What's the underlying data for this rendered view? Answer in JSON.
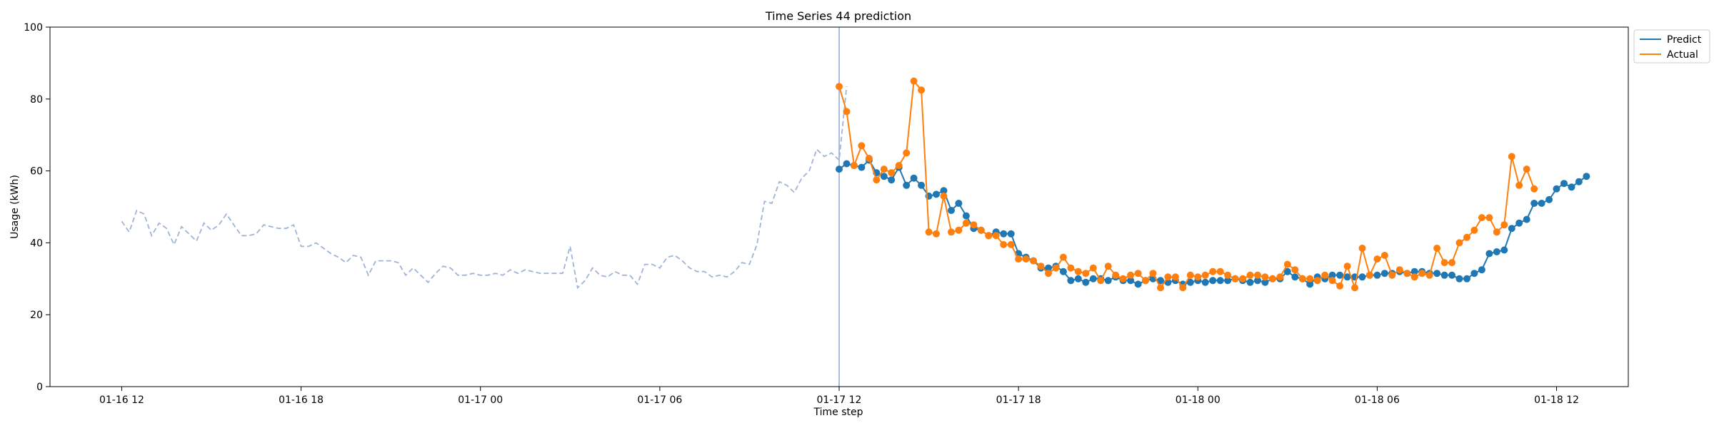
{
  "chart_data": {
    "type": "line",
    "title": "Time Series 44 prediction",
    "xlabel": "Time step",
    "ylabel": "Usage (kWh)",
    "x_ticks": [
      {
        "t": 0,
        "label": "01-16 12"
      },
      {
        "t": 6,
        "label": "01-16 18"
      },
      {
        "t": 12,
        "label": "01-17 00"
      },
      {
        "t": 18,
        "label": "01-17 06"
      },
      {
        "t": 24,
        "label": "01-17 12"
      },
      {
        "t": 30,
        "label": "01-17 18"
      },
      {
        "t": 36,
        "label": "01-18 00"
      },
      {
        "t": 42,
        "label": "01-18 06"
      },
      {
        "t": 48,
        "label": "01-18 12"
      }
    ],
    "y_ticks": [
      0,
      20,
      40,
      60,
      80,
      100
    ],
    "xlim": [
      -2.4,
      50.4
    ],
    "ylim": [
      0,
      100
    ],
    "forecast_start": 24,
    "legend_position": "outside upper right",
    "history": {
      "color": "#9fb4d6",
      "start": 0,
      "step": 0.25,
      "values": [
        46,
        43,
        49,
        48,
        42,
        45.5,
        44,
        39.5,
        44.5,
        42.5,
        40.5,
        45.5,
        43.5,
        45,
        48,
        45,
        42,
        42,
        42.5,
        45,
        44.5,
        44,
        44,
        45,
        39,
        39,
        40,
        38.5,
        37,
        36,
        34.5,
        36.5,
        36,
        31,
        35,
        35,
        35,
        34.5,
        31,
        33,
        31,
        29,
        31.5,
        33.5,
        33,
        31,
        31,
        31.5,
        31,
        31,
        31.5,
        31,
        32.5,
        31.5,
        32.5,
        32,
        31.5,
        31.5,
        31.5,
        31.5,
        39,
        27.5,
        29.5,
        33,
        31,
        30.5,
        32,
        31,
        31,
        28.5,
        34,
        34,
        33,
        36,
        36.5,
        35,
        33,
        32,
        32,
        30.5,
        31,
        30.5,
        32,
        34.5,
        34,
        39.5,
        51.5,
        51,
        57,
        56,
        54,
        58,
        60,
        66,
        64,
        65,
        63,
        83.5
      ]
    },
    "series": [
      {
        "name": "Predict",
        "color": "#1f77b4",
        "start": 24,
        "step": 0.25,
        "values": [
          60.5,
          62,
          61.5,
          61,
          63,
          59.5,
          58.5,
          57.5,
          61,
          56,
          58,
          56,
          53,
          53.5,
          54.5,
          49,
          51,
          47.5,
          44,
          43.5,
          42,
          43,
          42.5,
          42.5,
          37,
          36,
          35,
          33,
          33,
          33.5,
          32,
          29.5,
          30,
          29,
          30,
          30,
          29.5,
          30.5,
          29.5,
          29.5,
          28.5,
          29.5,
          30,
          29.5,
          29,
          29.5,
          28.5,
          29,
          29.5,
          29,
          29.5,
          29.5,
          29.5,
          30,
          29.5,
          29,
          29.5,
          29,
          30,
          30,
          32,
          30.5,
          30,
          28.5,
          30.5,
          30,
          31,
          31,
          30.5,
          30.5,
          30.5,
          31,
          31,
          31.5,
          31.5,
          32,
          31.5,
          32,
          32,
          31.5,
          31.5,
          31,
          31,
          30,
          30,
          31.5,
          32.5,
          37,
          37.5,
          38,
          44,
          45.5,
          46.5,
          51,
          51,
          52,
          55,
          56.5,
          55.5,
          57,
          58.5
        ]
      },
      {
        "name": "Actual",
        "color": "#ff7f0e",
        "start": 24,
        "step": 0.25,
        "values": [
          83.5,
          76.5,
          61.5,
          67,
          63.5,
          57.5,
          60.5,
          59.5,
          61.5,
          65,
          85,
          82.5,
          43,
          42.5,
          53,
          43,
          43.5,
          45.5,
          45,
          43.5,
          42,
          42,
          39.5,
          39.5,
          35.5,
          35.5,
          35,
          33.5,
          31.5,
          33,
          36,
          33,
          32,
          31.5,
          33,
          29.5,
          33.5,
          31,
          30,
          31,
          31.5,
          29.5,
          31.5,
          27.5,
          30.5,
          30.5,
          27.5,
          31,
          30.5,
          31,
          32,
          32,
          31,
          30,
          30,
          31,
          31,
          30.5,
          30,
          30.5,
          34,
          32.5,
          30,
          30,
          29.5,
          31,
          29.5,
          28,
          33.5,
          27.5,
          38.5,
          31,
          35.5,
          36.5,
          31,
          32.5,
          31.5,
          30.5,
          31.5,
          31,
          38.5,
          34.5,
          34.5,
          40,
          41.5,
          43.5,
          47,
          47,
          43,
          45,
          64,
          56,
          60.5,
          55
        ]
      }
    ]
  }
}
